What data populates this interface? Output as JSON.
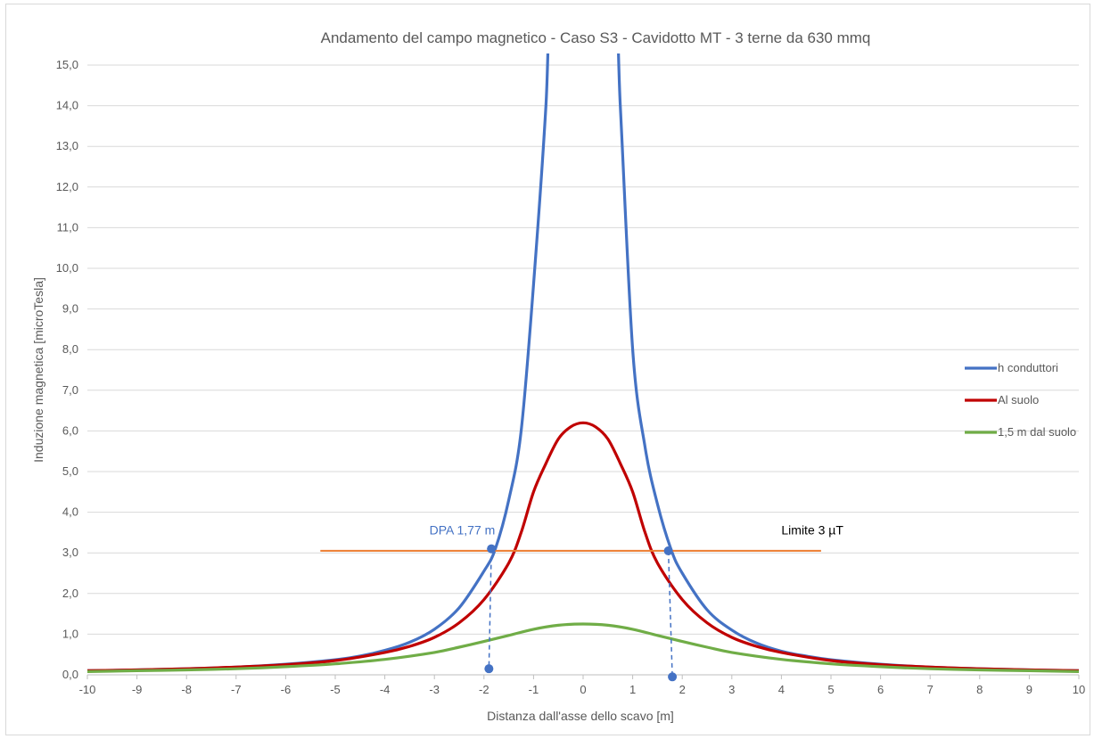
{
  "chart_data": {
    "type": "line",
    "title": "Andamento del  campo magnetico - Caso S3 - Cavidotto MT - 3 terne da 630 mmq",
    "xlabel": "Distanza dall'asse dello scavo [m]",
    "ylabel": "Induzione magnetica [microTesla]",
    "xlim": [
      -10,
      10
    ],
    "ylim": [
      0,
      15
    ],
    "x_ticks": [
      "-10",
      "-9",
      "-8",
      "-7",
      "-6",
      "-5",
      "-4",
      "-3",
      "-2",
      "-1",
      "0",
      "1",
      "2",
      "3",
      "4",
      "5",
      "6",
      "7",
      "8",
      "9",
      "10"
    ],
    "y_ticks": [
      "0,0",
      "1,0",
      "2,0",
      "3,0",
      "4,0",
      "5,0",
      "6,0",
      "7,0",
      "8,0",
      "9,0",
      "10,0",
      "11,0",
      "12,0",
      "13,0",
      "14,0",
      "15,0"
    ],
    "grid": "horizontal",
    "legend_position": "right",
    "series": [
      {
        "name": "h conduttori",
        "color": "#4472c4",
        "x": [
          -10,
          -9,
          -8,
          -7,
          -6,
          -5,
          -4.5,
          -4,
          -3.5,
          -3,
          -2.5,
          -2,
          -1.77,
          -1.5,
          -1.25,
          -1,
          -0.75,
          -0.5,
          0.5,
          0.75,
          1,
          1.25,
          1.5,
          1.77,
          2,
          2.5,
          3,
          3.5,
          4,
          4.5,
          5,
          6,
          7,
          8,
          9,
          10
        ],
        "y": [
          0.1,
          0.12,
          0.15,
          0.19,
          0.26,
          0.37,
          0.46,
          0.6,
          0.8,
          1.12,
          1.65,
          2.55,
          3.1,
          4.3,
          6.0,
          9.6,
          14.0,
          20.0,
          20.0,
          14.0,
          8.0,
          5.6,
          4.2,
          3.1,
          2.5,
          1.6,
          1.1,
          0.78,
          0.58,
          0.46,
          0.37,
          0.26,
          0.19,
          0.15,
          0.12,
          0.1
        ]
      },
      {
        "name": "Al suolo",
        "color": "#c00000",
        "x": [
          -10,
          -9,
          -8,
          -7,
          -6,
          -5,
          -4,
          -3.5,
          -3,
          -2.5,
          -2,
          -1.5,
          -1.25,
          -1,
          -0.75,
          -0.5,
          -0.25,
          0,
          0.25,
          0.5,
          0.75,
          1,
          1.25,
          1.5,
          2,
          2.5,
          3,
          3.5,
          4,
          5,
          6,
          7,
          8,
          9,
          10
        ],
        "y": [
          0.1,
          0.12,
          0.15,
          0.19,
          0.25,
          0.35,
          0.55,
          0.7,
          0.92,
          1.28,
          1.85,
          2.75,
          3.5,
          4.5,
          5.2,
          5.8,
          6.1,
          6.2,
          6.1,
          5.8,
          5.2,
          4.5,
          3.5,
          2.75,
          1.85,
          1.28,
          0.92,
          0.7,
          0.55,
          0.35,
          0.25,
          0.19,
          0.15,
          0.12,
          0.1
        ]
      },
      {
        "name": "1,5 m dal suolo",
        "color": "#70ad47",
        "x": [
          -10,
          -9,
          -8,
          -7,
          -6,
          -5,
          -4,
          -3,
          -2.5,
          -2,
          -1.5,
          -1,
          -0.5,
          0,
          0.5,
          1,
          1.5,
          2,
          2.5,
          3,
          4,
          5,
          6,
          7,
          8,
          9,
          10
        ],
        "y": [
          0.08,
          0.1,
          0.12,
          0.15,
          0.2,
          0.27,
          0.38,
          0.55,
          0.68,
          0.82,
          0.97,
          1.12,
          1.22,
          1.25,
          1.22,
          1.12,
          0.97,
          0.82,
          0.68,
          0.55,
          0.38,
          0.27,
          0.2,
          0.15,
          0.12,
          0.1,
          0.08
        ]
      },
      {
        "name": "",
        "color": "#ed7d31",
        "x": [
          -5.3,
          4.8
        ],
        "y": [
          3.05,
          3.05
        ]
      }
    ],
    "points": [
      {
        "x": -1.85,
        "y": 3.1
      },
      {
        "x": 1.72,
        "y": 3.05
      },
      {
        "x": -1.9,
        "y": 0.15
      },
      {
        "x": 1.8,
        "y": -0.05
      }
    ],
    "annotations": [
      {
        "text": "DPA 1,77 m",
        "x": -3.1,
        "y": 3.45,
        "color": "#4472c4"
      },
      {
        "text": "Limite 3 µT",
        "x": 4.0,
        "y": 3.45,
        "color": "#000000"
      }
    ]
  }
}
